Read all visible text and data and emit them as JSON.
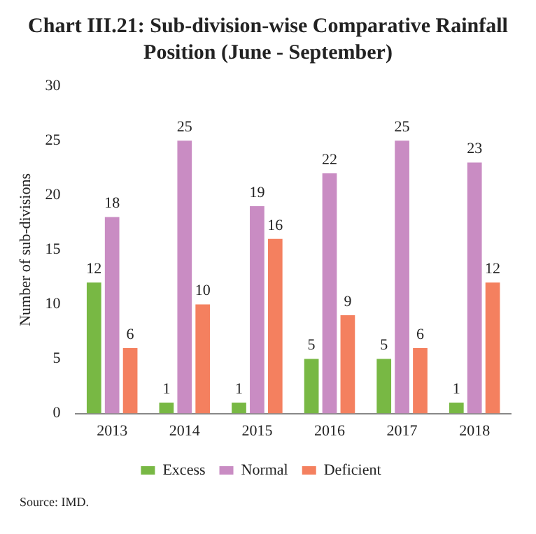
{
  "chart_data": {
    "type": "bar",
    "title": "Chart III.21: Sub-division-wise Comparative Rainfall Position (June - September)",
    "categories": [
      "2013",
      "2014",
      "2015",
      "2016",
      "2017",
      "2018"
    ],
    "series": [
      {
        "name": "Excess",
        "color": "#78b844",
        "values": [
          12,
          1,
          1,
          5,
          5,
          1
        ]
      },
      {
        "name": "Normal",
        "color": "#c98cc3",
        "values": [
          18,
          25,
          19,
          22,
          25,
          23
        ]
      },
      {
        "name": "Deficient",
        "color": "#f4805f",
        "values": [
          6,
          10,
          16,
          9,
          6,
          12
        ]
      }
    ],
    "ylabel": "Number of sub-divisions",
    "ylim": [
      0,
      30
    ],
    "yticks": [
      0,
      5,
      10,
      15,
      20,
      25,
      30
    ],
    "grid": false,
    "legend": "bottom",
    "data_labels": true,
    "annotations": [
      "Source: IMD."
    ]
  }
}
